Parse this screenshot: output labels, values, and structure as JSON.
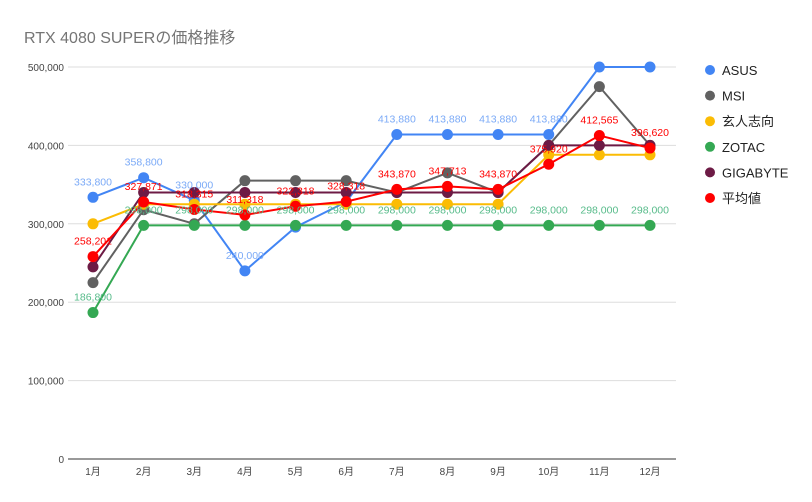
{
  "chart_data": {
    "type": "line",
    "title": "RTX 4080 SUPERの価格推移",
    "categories": [
      "1月",
      "2月",
      "3月",
      "4月",
      "5月",
      "6月",
      "7月",
      "8月",
      "9月",
      "10月",
      "11月",
      "12月"
    ],
    "ylim": [
      0,
      500000
    ],
    "yticks": [
      0,
      100000,
      200000,
      300000,
      400000,
      500000
    ],
    "ytick_labels": [
      "0",
      "100,000",
      "200,000",
      "300,000",
      "400,000",
      "500,000"
    ],
    "grid": true,
    "legend": "right",
    "series": [
      {
        "name": "ASUS",
        "color": "#4285f4",
        "label_color": "#7baaf7",
        "show_labels": true,
        "values": [
          333800,
          358800,
          330000,
          240000,
          295800,
          328000,
          413880,
          413880,
          413880,
          413880,
          500000,
          500000
        ],
        "labels": [
          "333,800",
          "358,800",
          "330,000",
          "240,000",
          "",
          "",
          "413,880",
          "413,880",
          "413,880",
          "413,880",
          "",
          ""
        ]
      },
      {
        "name": "MSI",
        "color": "#616161",
        "show_labels": false,
        "values": [
          225000,
          318000,
          300000,
          355000,
          355000,
          355000,
          340000,
          365000,
          340000,
          400000,
          475000,
          400000
        ]
      },
      {
        "name": "玄人志向",
        "color": "#fbbc04",
        "show_labels": false,
        "values": [
          300000,
          325000,
          325000,
          325000,
          325000,
          325000,
          325000,
          325000,
          325000,
          388000,
          388000,
          388000
        ]
      },
      {
        "name": "ZOTAC",
        "color": "#34a853",
        "label_color": "#57bb8a",
        "show_labels": true,
        "values": [
          186800,
          298000,
          298000,
          298000,
          298000,
          298000,
          298000,
          298000,
          298000,
          298000,
          298000,
          298000
        ],
        "labels": [
          "186,800",
          "298,000",
          "298,000",
          "298,000",
          "298,000",
          "298,000",
          "298,000",
          "298,000",
          "298,000",
          "298,000",
          "298,000",
          "298,000"
        ]
      },
      {
        "name": "GIGABYTE",
        "color": "#6d1b45",
        "show_labels": false,
        "values": [
          245000,
          340000,
          340000,
          340000,
          340000,
          340000,
          340000,
          340000,
          340000,
          400000,
          400000,
          400000
        ]
      },
      {
        "name": "平均値",
        "color": "#ff0000",
        "label_color": "#ff0000",
        "show_labels": true,
        "values": [
          258201,
          327871,
          318315,
          311318,
          322318,
          328318,
          343870,
          347713,
          343870,
          375920,
          412565,
          396620
        ],
        "labels": [
          "258,201",
          "327,871",
          "318,315",
          "311,318",
          "322,318",
          "328,318",
          "343,870",
          "347,713",
          "343,870",
          "375,920",
          "412,565",
          "396,620"
        ]
      }
    ]
  }
}
